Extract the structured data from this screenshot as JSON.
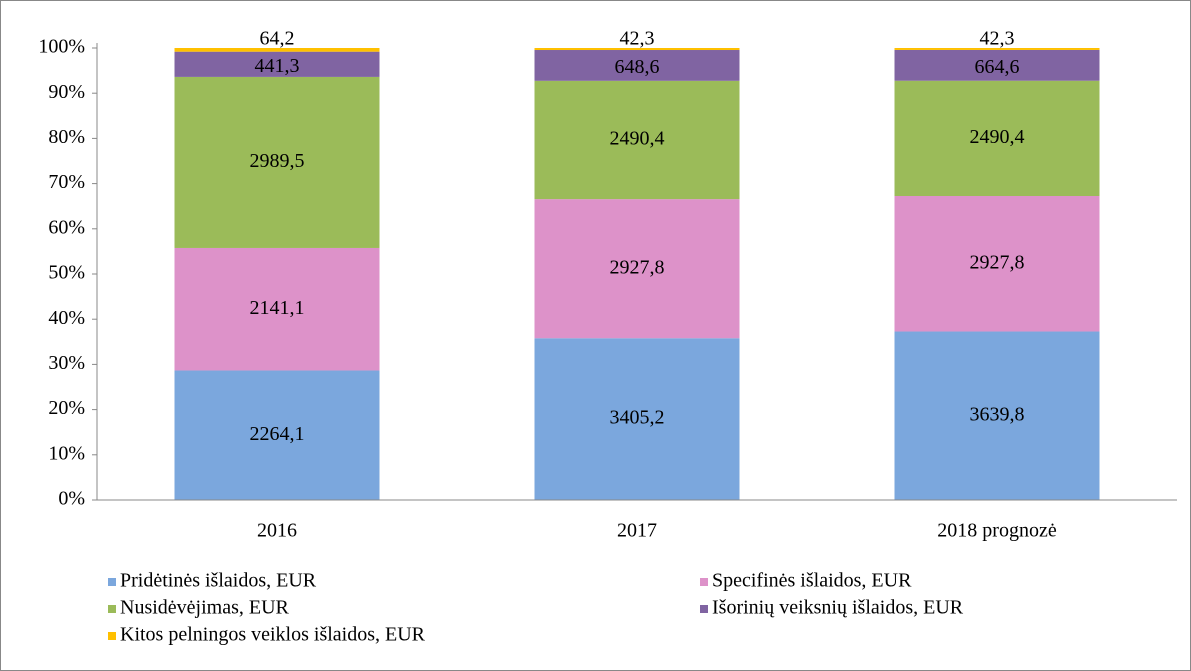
{
  "chart_data": {
    "type": "bar",
    "stacking": "percent",
    "categories": [
      "2016",
      "2017",
      "2018 prognozė"
    ],
    "series": [
      {
        "name": "Pridėtinės išlaidos, EUR",
        "color": "#7ba7dd",
        "values": [
          2264.1,
          3405.2,
          3639.8
        ],
        "value_labels": [
          "2264,1",
          "3405,2",
          "3639,8"
        ]
      },
      {
        "name": "Specifinės išlaidos, EUR",
        "color": "#dd92c9",
        "values": [
          2141.1,
          2927.8,
          2927.8
        ],
        "value_labels": [
          "2141,1",
          "2927,8",
          "2927,8"
        ]
      },
      {
        "name": "Nusidėvėjimas, EUR",
        "color": "#9bbb59",
        "values": [
          2989.5,
          2490.4,
          2490.4
        ],
        "value_labels": [
          "2989,5",
          "2490,4",
          "2490,4"
        ]
      },
      {
        "name": "Išorinių veiksnių išlaidos, EUR",
        "color": "#8064a2",
        "values": [
          441.3,
          648.6,
          664.6
        ],
        "value_labels": [
          "441,3",
          "648,6",
          "664,6"
        ]
      },
      {
        "name": "Kitos pelningos veiklos išlaidos, EUR",
        "color": "#ffc000",
        "values": [
          64.2,
          42.3,
          42.3
        ],
        "value_labels": [
          "64,2",
          "42,3",
          "42,3"
        ]
      }
    ],
    "ylim": [
      0,
      100
    ],
    "yticks": [
      {
        "value": 0,
        "label": "0%"
      },
      {
        "value": 10,
        "label": "10%"
      },
      {
        "value": 20,
        "label": "20%"
      },
      {
        "value": 30,
        "label": "30%"
      },
      {
        "value": 40,
        "label": "40%"
      },
      {
        "value": 50,
        "label": "50%"
      },
      {
        "value": 60,
        "label": "60%"
      },
      {
        "value": 70,
        "label": "70%"
      },
      {
        "value": 80,
        "label": "80%"
      },
      {
        "value": 90,
        "label": "90%"
      },
      {
        "value": 100,
        "label": "100%"
      }
    ],
    "grid": false,
    "legend": "bottom"
  }
}
